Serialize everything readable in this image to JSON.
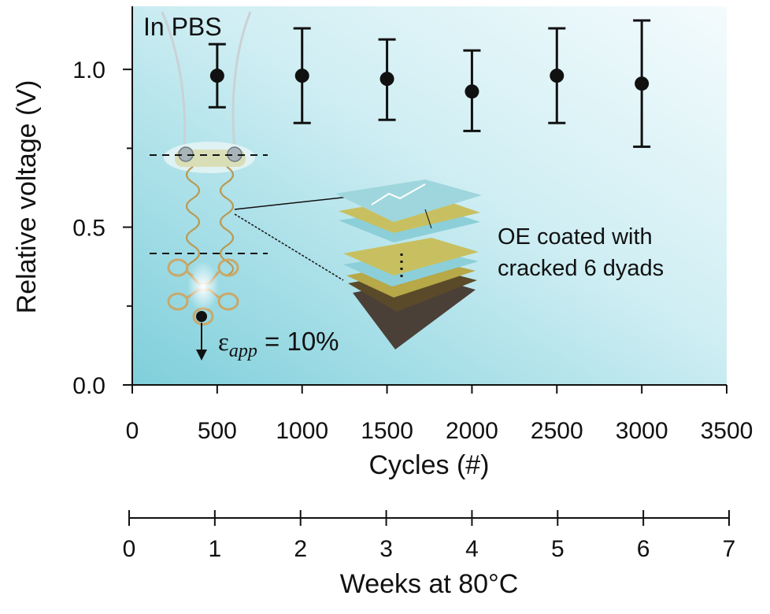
{
  "chart_data": {
    "type": "scatter",
    "panel_label": "In PBS",
    "xlabel": "Cycles (#)",
    "ylabel": "Relative voltage (V)",
    "xlim": [
      0,
      3500
    ],
    "ylim": [
      0,
      1.2
    ],
    "x_ticks": [
      "0",
      "500",
      "1000",
      "1500",
      "2000",
      "2500",
      "3000",
      "3500"
    ],
    "y_ticks": [
      "0.0",
      "0.5",
      "1.0"
    ],
    "series": [
      {
        "x": [
          500,
          1000,
          1500,
          2000,
          2500,
          3000
        ],
        "y": [
          0.98,
          0.98,
          0.97,
          0.93,
          0.98,
          0.955
        ],
        "err_low": [
          0.88,
          0.83,
          0.84,
          0.805,
          0.83,
          0.755
        ],
        "err_high": [
          1.08,
          1.13,
          1.095,
          1.06,
          1.13,
          1.155
        ],
        "color": "#111111"
      }
    ],
    "secondary_axis": {
      "label": "Weeks at 80°C",
      "lim": [
        0,
        7
      ],
      "ticks": [
        "0",
        "1",
        "2",
        "3",
        "4",
        "5",
        "6",
        "7"
      ]
    },
    "inset": {
      "annotation_line1": "OE coated with",
      "annotation_line2": "cracked 6 dyads",
      "strain_symbol": "ε",
      "strain_subscript": "app",
      "strain_value": " = 10%"
    },
    "colors": {
      "background_light": "#f4fbfd",
      "background_dark": "#7fcfdb",
      "points": "#111111",
      "layer_blue": "#8ccfd8",
      "layer_olive": "#c8c060",
      "layer_brown": "#5a4a2a",
      "trace_gold": "#c8a860"
    }
  }
}
